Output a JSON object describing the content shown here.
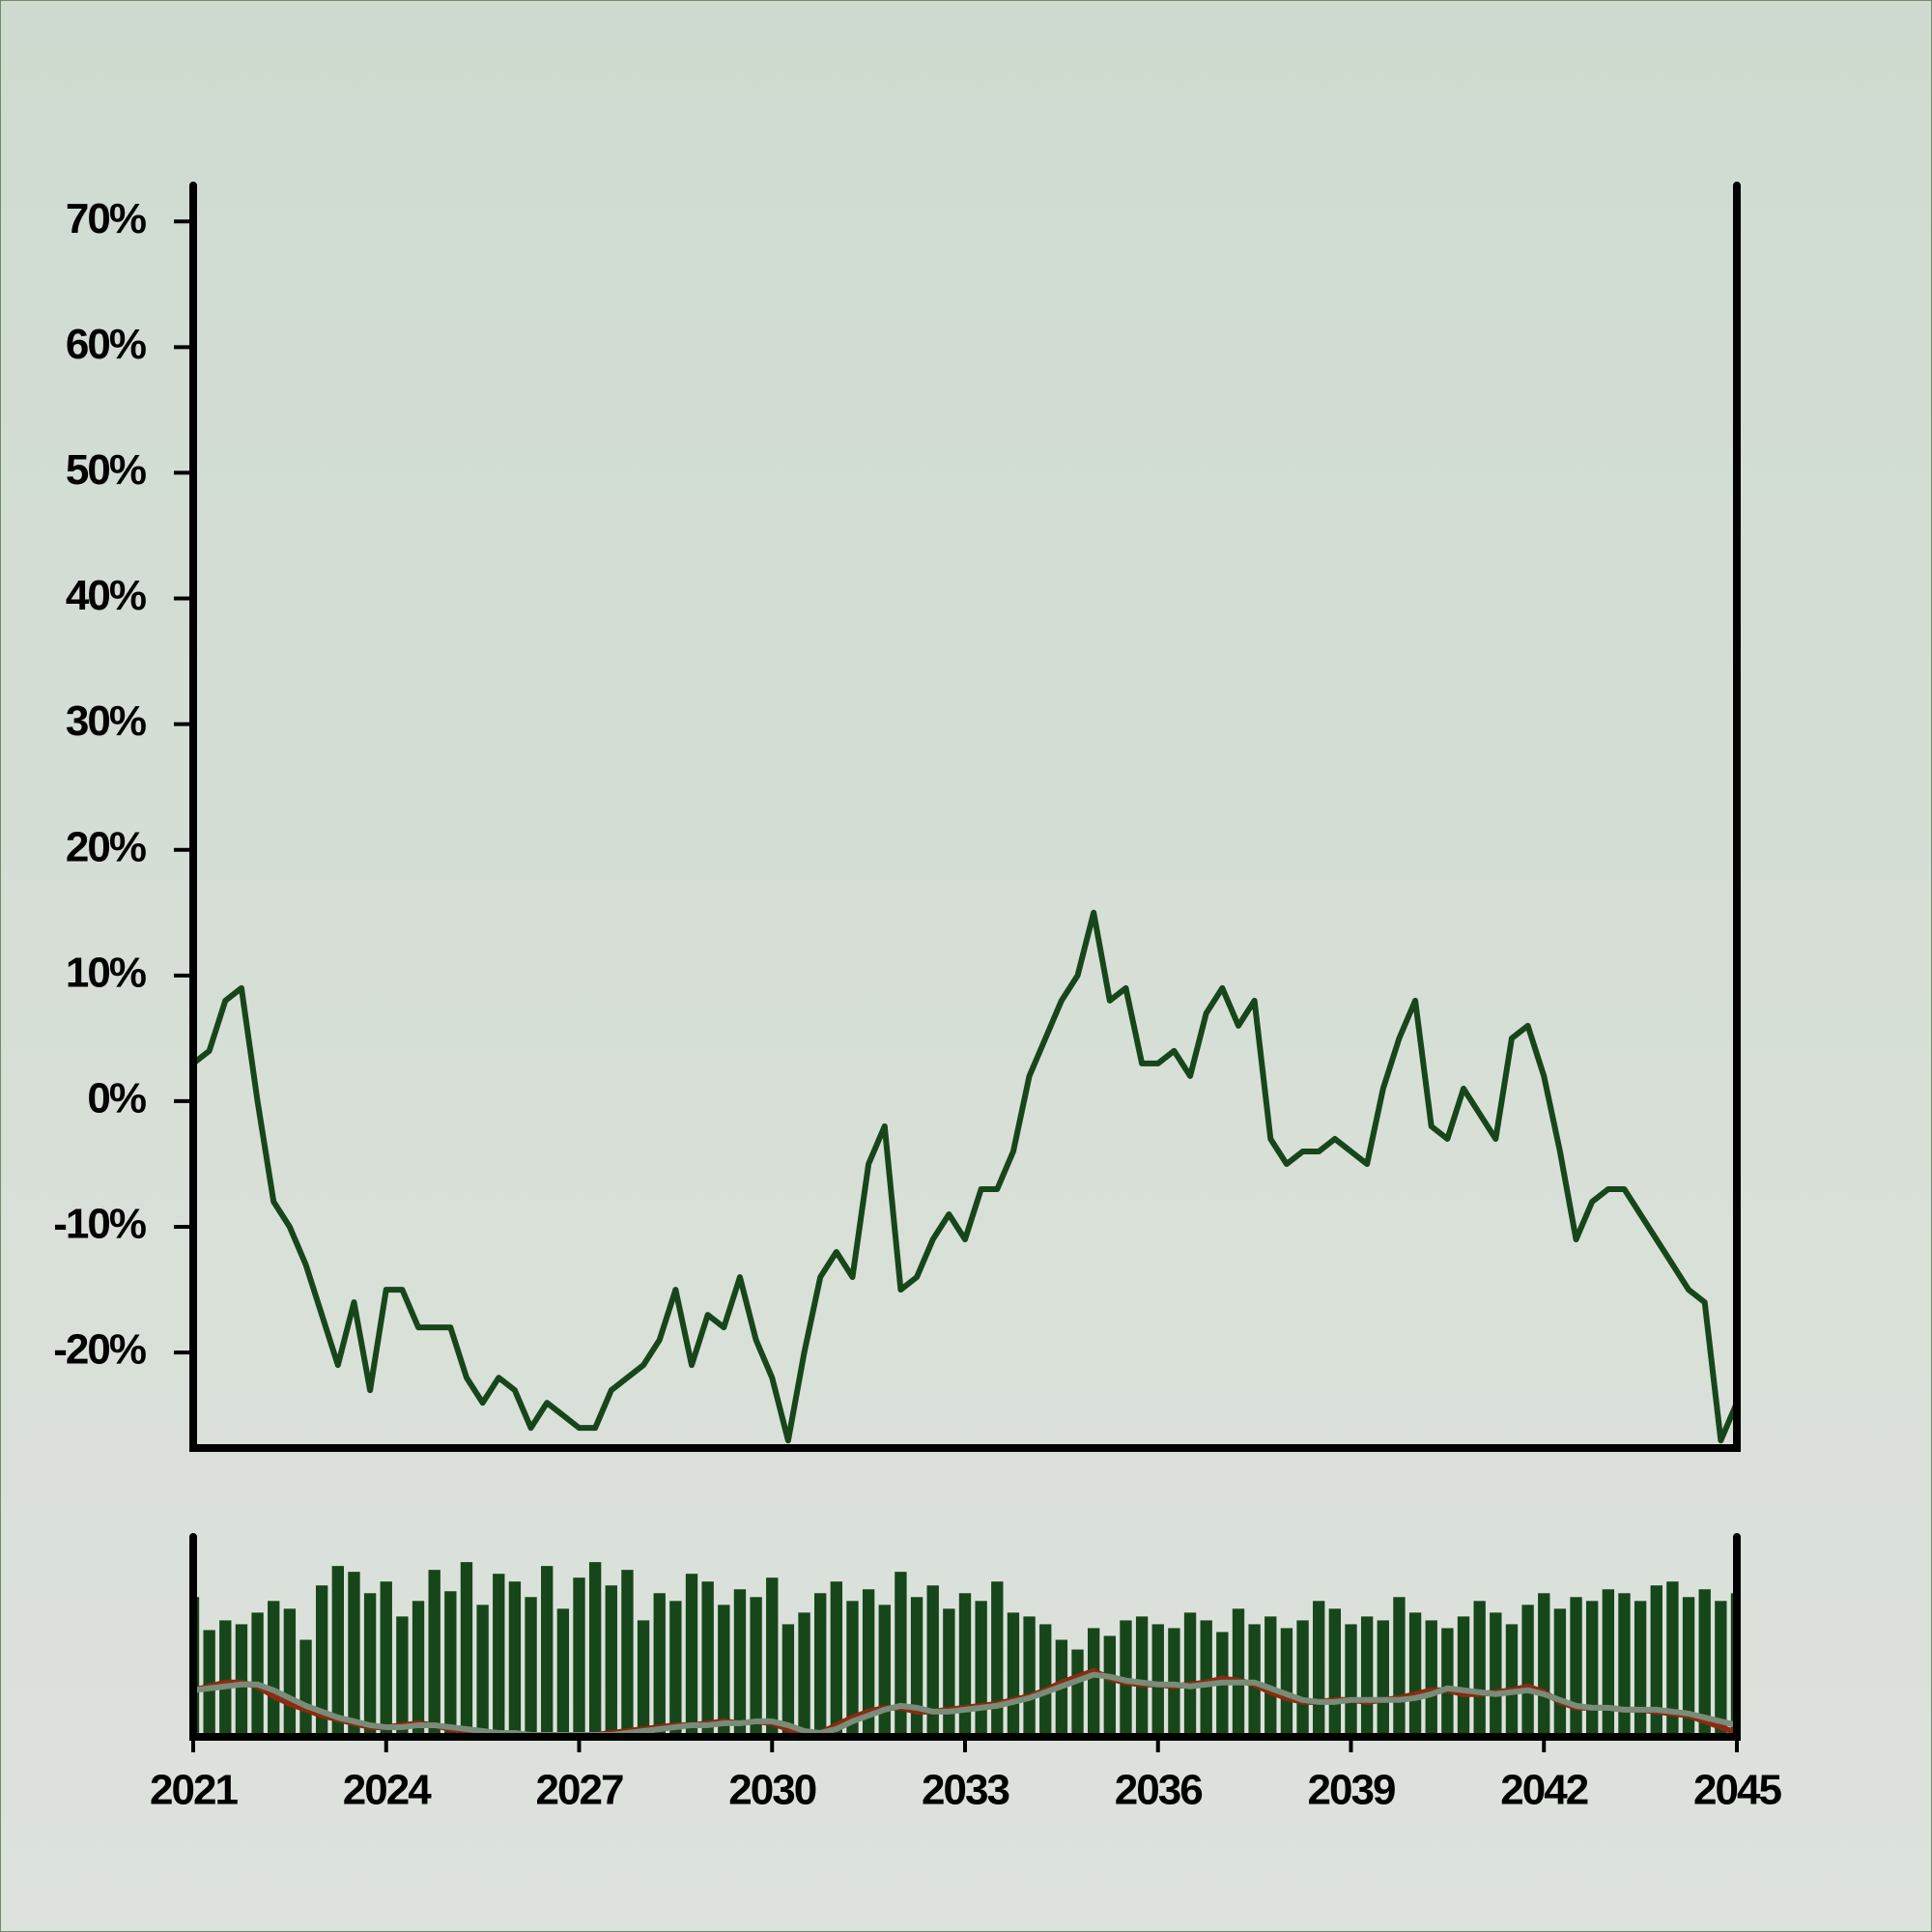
{
  "chart_data": [
    {
      "type": "line",
      "x": [
        2021,
        2021.25,
        2021.5,
        2021.75,
        2022,
        2022.25,
        2022.5,
        2022.75,
        2023,
        2023.25,
        2023.5,
        2023.75,
        2024,
        2024.25,
        2024.5,
        2024.75,
        2025,
        2025.25,
        2025.5,
        2025.75,
        2026,
        2026.25,
        2026.5,
        2026.75,
        2027,
        2027.25,
        2027.5,
        2027.75,
        2028,
        2028.25,
        2028.5,
        2028.75,
        2029,
        2029.25,
        2029.5,
        2029.75,
        2030,
        2030.25,
        2030.5,
        2030.75,
        2031,
        2031.25,
        2031.5,
        2031.75,
        2032,
        2032.25,
        2032.5,
        2032.75,
        2033,
        2033.25,
        2033.5,
        2033.75,
        2034,
        2034.25,
        2034.5,
        2034.75,
        2035,
        2035.25,
        2035.5,
        2035.75,
        2036,
        2036.25,
        2036.5,
        2036.75,
        2037,
        2037.25,
        2037.5,
        2037.75,
        2038,
        2038.25,
        2038.5,
        2038.75,
        2039,
        2039.25,
        2039.5,
        2039.75,
        2040,
        2040.25,
        2040.5,
        2040.75,
        2041,
        2041.25,
        2041.5,
        2041.75,
        2042,
        2042.25,
        2042.5,
        2042.75,
        2043,
        2043.25,
        2043.5,
        2043.75,
        2044,
        2044.25,
        2044.5,
        2044.75,
        2045
      ],
      "series": [
        {
          "color": "#17461a",
          "values": [
            3,
            4,
            8,
            9,
            0,
            -8,
            -10,
            -13,
            -17,
            -21,
            -16,
            -23,
            -15,
            -15,
            -18,
            -18,
            -18,
            -22,
            -24,
            -22,
            -23,
            -26,
            -24,
            -25,
            -26,
            -26,
            -23,
            -22,
            -21,
            -19,
            -15,
            -21,
            -17,
            -18,
            -14,
            -19,
            -22,
            -27,
            -20,
            -14,
            -12,
            -14,
            -5,
            -2,
            -15,
            -14,
            -11,
            -9,
            -11,
            -7,
            -7,
            -4,
            2,
            5,
            8,
            10,
            15,
            8,
            9,
            3,
            3,
            4,
            2,
            7,
            9,
            6,
            8,
            -3,
            -5,
            -4,
            -4,
            -3,
            -4,
            -5,
            1,
            5,
            8,
            -2,
            -3,
            1,
            -1,
            -3,
            5,
            6,
            2,
            -4,
            -11,
            -8,
            -7,
            -7,
            -9,
            -11,
            -13,
            -15,
            -16,
            -27,
            -24
          ]
        }
      ],
      "xlim": [
        2021,
        2045
      ],
      "ylim": [
        -27.6,
        72.4
      ],
      "yticks": [
        {
          "value": -20,
          "label": "-20%"
        },
        {
          "value": -10,
          "label": "-10%"
        },
        {
          "value": 0,
          "label": "0%"
        },
        {
          "value": 10,
          "label": "10%"
        },
        {
          "value": 20,
          "label": "20%"
        },
        {
          "value": 30,
          "label": "30%"
        },
        {
          "value": 40,
          "label": "40%"
        },
        {
          "value": 50,
          "label": "50%"
        },
        {
          "value": 60,
          "label": "60%"
        },
        {
          "value": 70,
          "label": "70%"
        }
      ]
    },
    {
      "type": "combo",
      "x": [
        2021,
        2021.25,
        2021.5,
        2021.75,
        2022,
        2022.25,
        2022.5,
        2022.75,
        2023,
        2023.25,
        2023.5,
        2023.75,
        2024,
        2024.25,
        2024.5,
        2024.75,
        2025,
        2025.25,
        2025.5,
        2025.75,
        2026,
        2026.25,
        2026.5,
        2026.75,
        2027,
        2027.25,
        2027.5,
        2027.75,
        2028,
        2028.25,
        2028.5,
        2028.75,
        2029,
        2029.25,
        2029.5,
        2029.75,
        2030,
        2030.25,
        2030.5,
        2030.75,
        2031,
        2031.25,
        2031.5,
        2031.75,
        2032,
        2032.25,
        2032.5,
        2032.75,
        2033,
        2033.25,
        2033.5,
        2033.75,
        2034,
        2034.25,
        2034.5,
        2034.75,
        2035,
        2035.25,
        2035.5,
        2035.75,
        2036,
        2036.25,
        2036.5,
        2036.75,
        2037,
        2037.25,
        2037.5,
        2037.75,
        2038,
        2038.25,
        2038.5,
        2038.75,
        2039,
        2039.25,
        2039.5,
        2039.75,
        2040,
        2040.25,
        2040.5,
        2040.75,
        2041,
        2041.25,
        2041.5,
        2041.75,
        2042,
        2042.25,
        2042.5,
        2042.75,
        2043,
        2043.25,
        2043.5,
        2043.75,
        2044,
        2044.25,
        2044.5,
        2044.75,
        2045
      ],
      "series": [
        {
          "type": "bar",
          "color": "#17461a",
          "values": [
            72,
            55,
            60,
            58,
            64,
            70,
            66,
            50,
            78,
            88,
            85,
            74,
            80,
            62,
            70,
            86,
            75,
            90,
            68,
            84,
            80,
            72,
            88,
            66,
            82,
            90,
            78,
            86,
            60,
            74,
            70,
            84,
            80,
            68,
            76,
            72,
            82,
            58,
            64,
            74,
            80,
            70,
            76,
            68,
            85,
            72,
            78,
            66,
            74,
            70,
            80,
            64,
            62,
            58,
            50,
            45,
            56,
            52,
            60,
            62,
            58,
            56,
            64,
            60,
            54,
            66,
            58,
            62,
            56,
            60,
            70,
            66,
            58,
            62,
            60,
            72,
            64,
            60,
            56,
            62,
            70,
            64,
            58,
            68,
            74,
            66,
            72,
            70,
            76,
            74,
            70,
            78,
            80,
            72,
            76,
            70,
            74
          ]
        },
        {
          "type": "line",
          "color": "#8b2a12",
          "values": [
            24,
            26,
            28,
            28,
            26,
            21,
            17,
            14,
            11,
            9,
            7,
            5,
            5,
            6,
            7,
            6,
            4,
            3,
            2,
            1,
            1,
            1,
            0,
            1,
            1,
            1,
            2,
            3,
            4,
            5,
            6,
            6,
            7,
            8,
            7,
            8,
            7,
            4,
            2,
            2,
            6,
            10,
            13,
            15,
            15,
            13,
            13,
            14,
            15,
            16,
            17,
            19,
            21,
            24,
            28,
            31,
            34,
            30,
            28,
            27,
            27,
            26,
            27,
            28,
            30,
            29,
            27,
            23,
            20,
            18,
            18,
            19,
            19,
            18,
            19,
            20,
            22,
            24,
            24,
            22,
            22,
            23,
            24,
            26,
            23,
            18,
            15,
            15,
            15,
            14,
            14,
            13,
            12,
            11,
            8,
            5,
            2
          ]
        },
        {
          "type": "line",
          "color": "#7a8b78",
          "values": [
            24,
            25,
            26,
            27,
            27,
            24,
            20,
            16,
            13,
            10,
            8,
            6,
            5,
            5,
            6,
            6,
            5,
            4,
            3,
            2,
            2,
            1,
            1,
            1,
            1,
            1,
            1,
            2,
            3,
            4,
            5,
            6,
            6,
            7,
            7,
            8,
            8,
            6,
            3,
            2,
            4,
            8,
            11,
            14,
            16,
            15,
            13,
            13,
            14,
            15,
            16,
            18,
            20,
            23,
            26,
            29,
            32,
            31,
            29,
            28,
            27,
            27,
            26,
            27,
            28,
            28,
            28,
            25,
            22,
            19,
            18,
            18,
            19,
            19,
            19,
            19,
            20,
            22,
            25,
            24,
            23,
            22,
            23,
            24,
            22,
            19,
            16,
            15,
            15,
            14,
            14,
            14,
            13,
            12,
            10,
            8,
            6
          ]
        }
      ],
      "xlim": [
        2021,
        2045
      ],
      "ylim": [
        0,
        100
      ],
      "xticks": [
        2021,
        2024,
        2027,
        2030,
        2033,
        2036,
        2039,
        2042,
        2045
      ]
    }
  ]
}
